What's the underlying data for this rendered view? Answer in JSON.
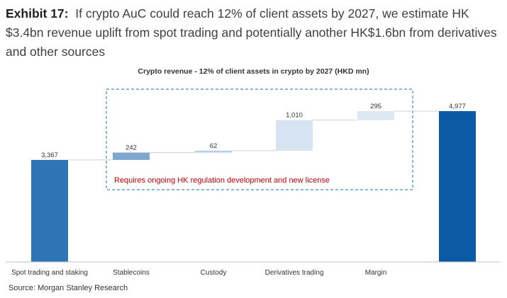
{
  "exhibit": {
    "label": "Exhibit 17:",
    "title": "If crypto AuC could reach 12% of client assets by 2027, we estimate HK $3.4bn revenue uplift from spot trading and potentially another HK$1.6bn from derivatives and other sources"
  },
  "source": "Source: Morgan Stanley Research",
  "chart_data": {
    "type": "waterfall",
    "title": "Crypto revenue - 12% of client assets in crypto by 2027 (HKD mn)",
    "categories": [
      "Spot trading and staking",
      "Stablecoins",
      "Custody",
      "Derivatives trading",
      "Margin",
      ""
    ],
    "bars": [
      {
        "kind": "total",
        "value": 3367,
        "label": "3,367",
        "color": "#2e75b6"
      },
      {
        "kind": "delta",
        "value": 242,
        "label": "242",
        "color": "#7fa8cf"
      },
      {
        "kind": "delta",
        "value": 62,
        "label": "62",
        "color": "#b7cfe6"
      },
      {
        "kind": "delta",
        "value": 1010,
        "label": "1,010",
        "color": "#d6e4f1"
      },
      {
        "kind": "delta",
        "value": 295,
        "label": "295",
        "color": "#dde8f3"
      },
      {
        "kind": "total",
        "value": 4977,
        "label": "4,977",
        "color": "#0a5aa6"
      }
    ],
    "annotation": "Requires ongoing HK regulation development and new license",
    "annotation_color": "#c00000",
    "box_color": "#3b8fc4",
    "connector_color": "#d0d0d0"
  }
}
